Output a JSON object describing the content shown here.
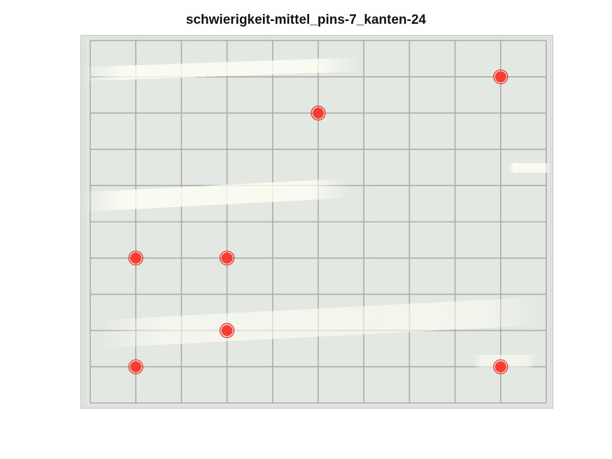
{
  "title": "schwierigkeit-mittel_pins-7_kanten-24",
  "board": {
    "columns": 10,
    "rows": 10,
    "board_color": "#dfe3de",
    "grid_color": "#a9aca8",
    "pin_color": "#ff3b30",
    "pin_ring_color": "#e8261c"
  },
  "pins": [
    {
      "col": 9,
      "row": 1
    },
    {
      "col": 5,
      "row": 2
    },
    {
      "col": 1,
      "row": 6
    },
    {
      "col": 3,
      "row": 6
    },
    {
      "col": 3,
      "row": 8
    },
    {
      "col": 1,
      "row": 9
    },
    {
      "col": 9,
      "row": 9
    }
  ]
}
